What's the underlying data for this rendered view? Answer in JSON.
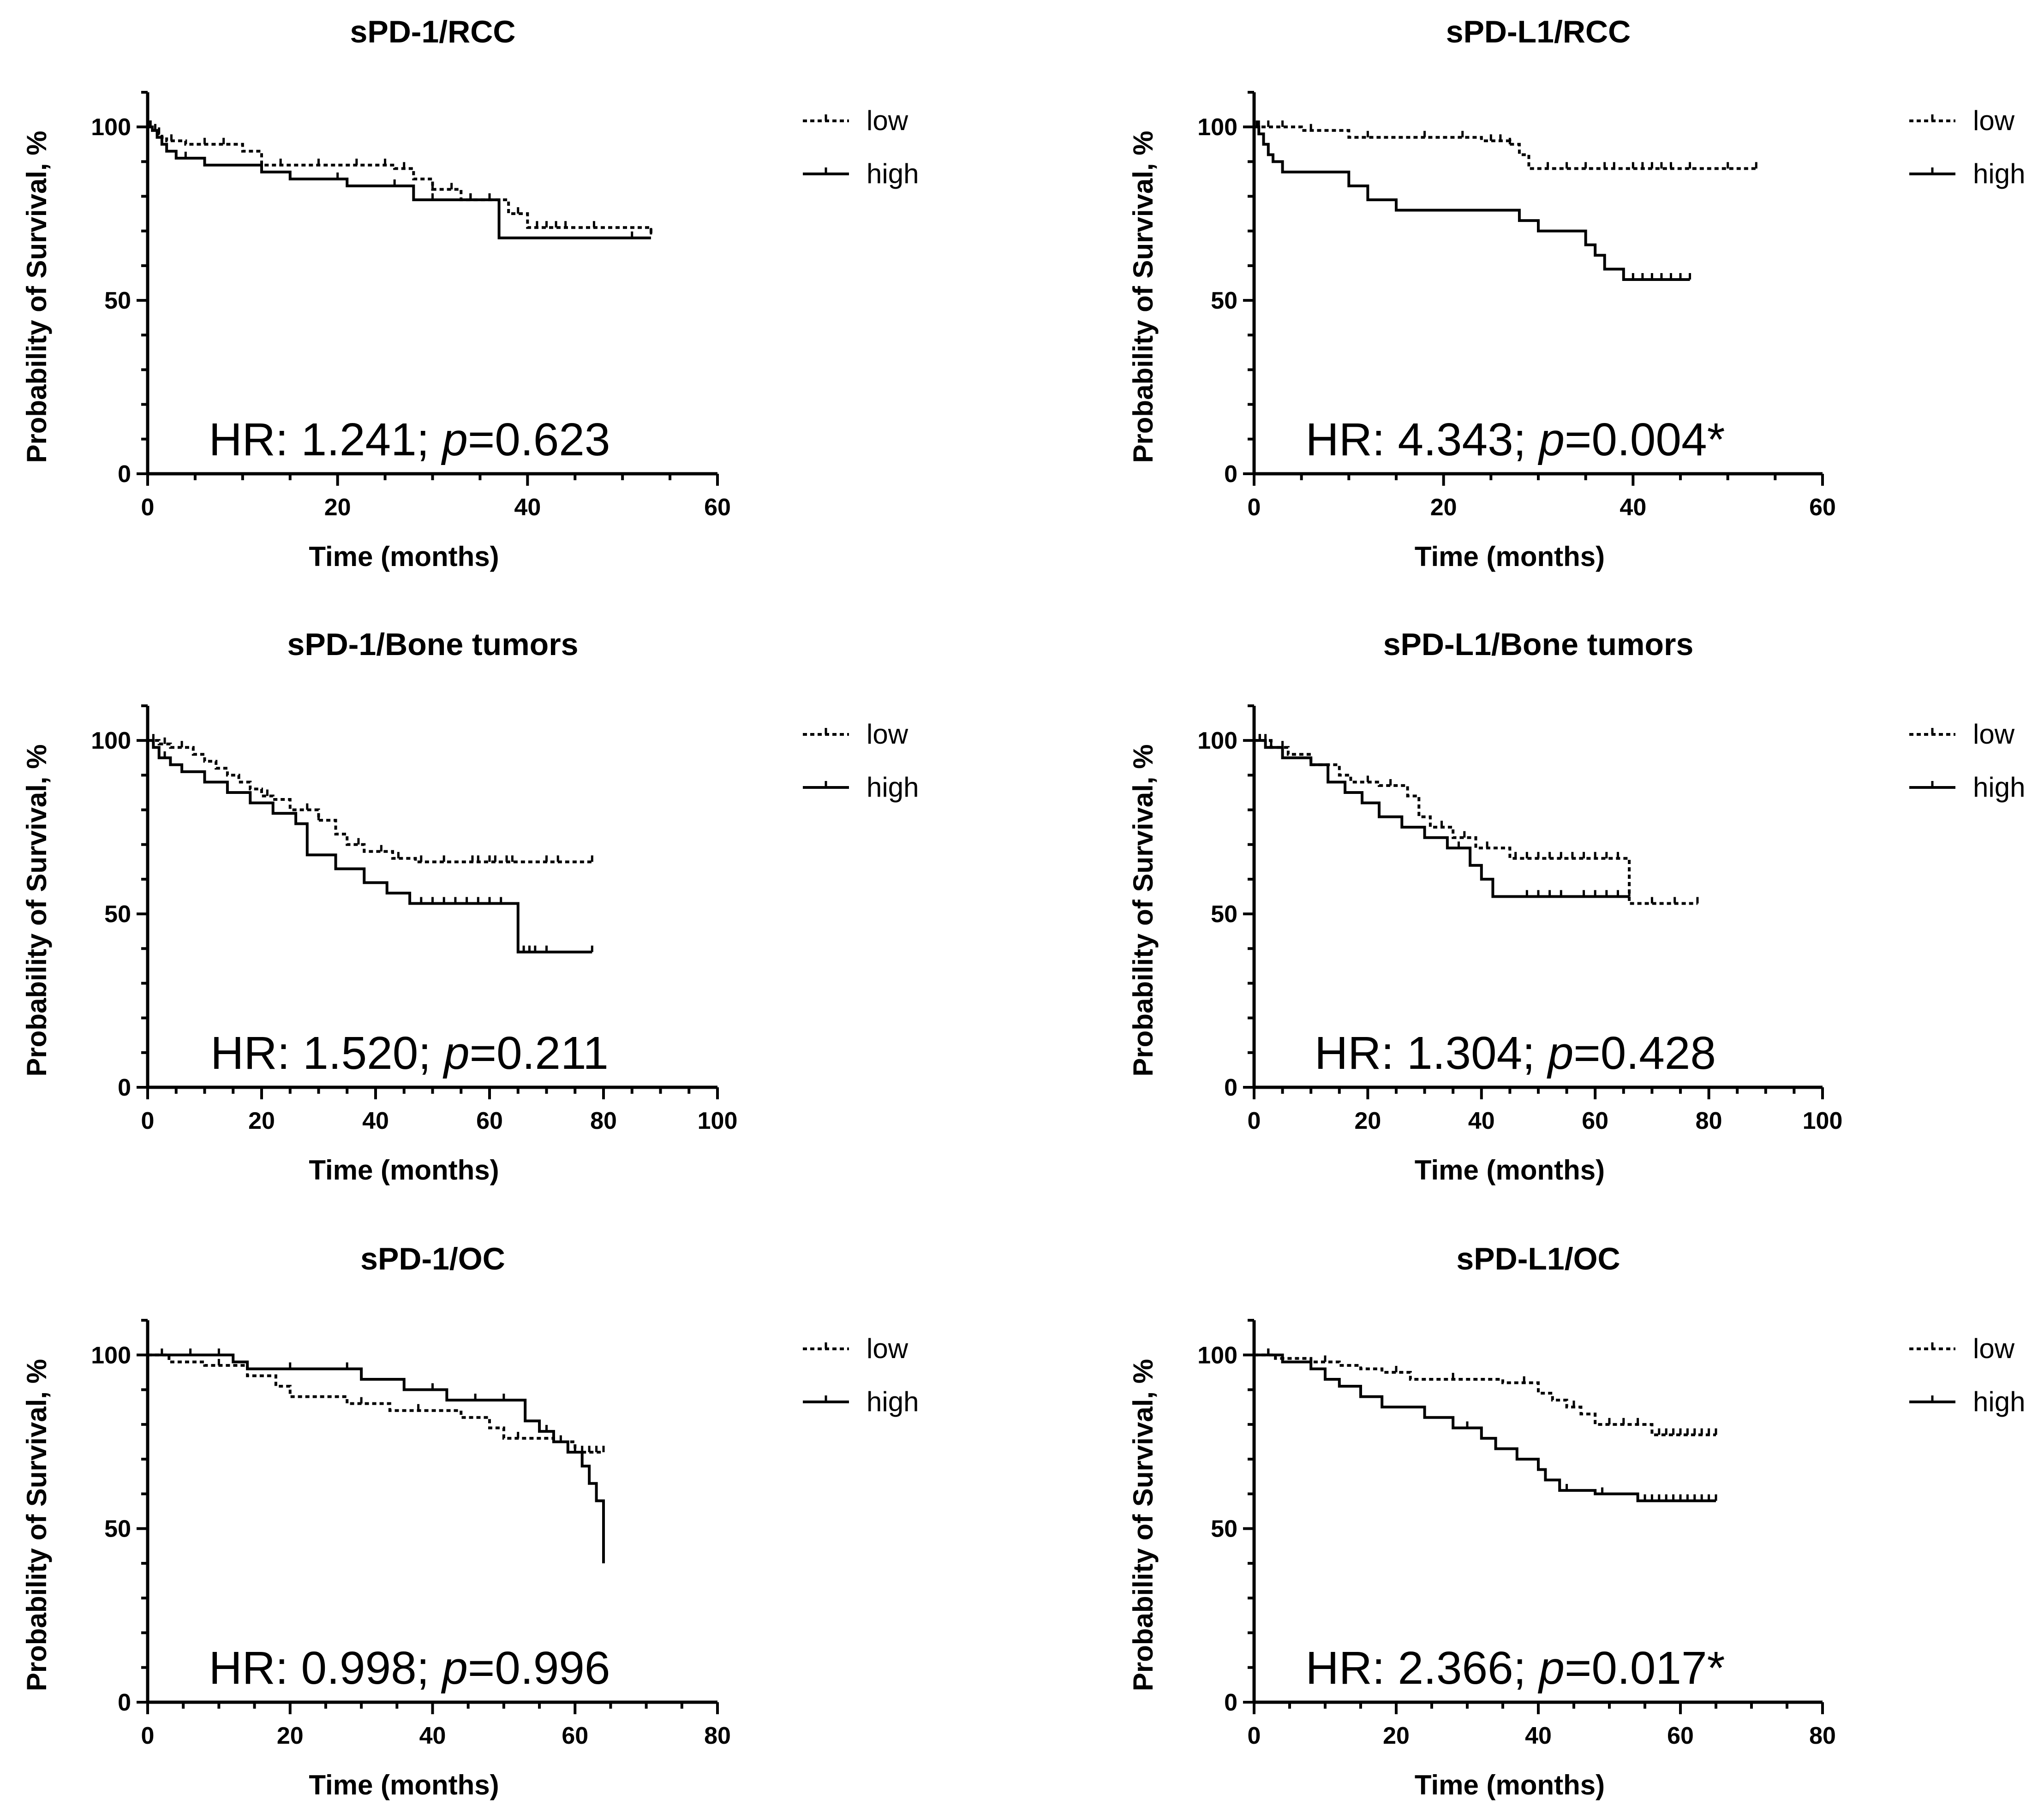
{
  "chart_data": [
    {
      "type": "line",
      "title": "sPD-1/RCC",
      "xlabel": "Time (months)",
      "ylabel": "Probability of Survival, %",
      "xlim": [
        0,
        60
      ],
      "ylim": [
        0,
        110
      ],
      "xticks": [
        0,
        20,
        40,
        60
      ],
      "yticks": [
        0,
        50,
        100
      ],
      "xtick_labels": [
        "0",
        "20",
        "40",
        "60"
      ],
      "ytick_labels": [
        "0",
        "50",
        "100"
      ],
      "legend": [
        "low",
        "high"
      ],
      "legend_position": "right",
      "annotation": {
        "prefix": "HR: 1.241; ",
        "p_symbol": "p",
        "p_value": "=0.623"
      },
      "series": [
        {
          "name": "low",
          "style": "dotted",
          "x": [
            0,
            0.5,
            1,
            1.5,
            2,
            4,
            10,
            12,
            26,
            28,
            30,
            33,
            38,
            40,
            53
          ],
          "y": [
            100,
            99,
            98,
            97,
            96,
            95,
            93,
            89,
            88,
            85,
            82,
            79,
            75,
            71,
            69
          ],
          "censor": [
            0.3,
            0.8,
            1.2,
            2.5,
            6,
            8,
            14,
            18,
            22,
            25,
            27,
            30,
            32,
            34,
            36,
            39,
            41,
            42,
            43,
            44,
            47,
            53
          ]
        },
        {
          "name": "high",
          "style": "solid",
          "x": [
            0,
            0.5,
            1,
            1.5,
            2,
            3,
            6,
            12,
            15,
            21,
            28,
            37,
            53
          ],
          "y": [
            100,
            99,
            97,
            95,
            93,
            91,
            89,
            87,
            85,
            83,
            79,
            68,
            68
          ],
          "censor": [
            0.3,
            1,
            2,
            4,
            20,
            26,
            30,
            34,
            51
          ]
        }
      ]
    },
    {
      "type": "line",
      "title": "sPD-L1/RCC",
      "xlabel": "Time (months)",
      "ylabel": "Probability of Survival, %",
      "xlim": [
        0,
        60
      ],
      "ylim": [
        0,
        110
      ],
      "xticks": [
        0,
        20,
        40,
        60
      ],
      "yticks": [
        0,
        50,
        100
      ],
      "xtick_labels": [
        "0",
        "20",
        "40",
        "60"
      ],
      "ytick_labels": [
        "0",
        "50",
        "100"
      ],
      "legend": [
        "low",
        "high"
      ],
      "legend_position": "right",
      "annotation": {
        "prefix": "HR: 4.343; ",
        "p_symbol": "p",
        "p_value": "=0.004*"
      },
      "series": [
        {
          "name": "low",
          "style": "dotted",
          "x": [
            0,
            1,
            2,
            5,
            10,
            20,
            24,
            27,
            28,
            29,
            53
          ],
          "y": [
            100,
            100,
            100,
            99,
            97,
            97,
            96,
            95,
            92,
            88,
            88
          ],
          "censor": [
            0.5,
            1.5,
            3,
            6,
            12,
            18,
            22,
            25,
            26,
            27,
            31,
            33,
            35,
            37,
            38,
            40,
            41,
            42,
            43,
            44,
            46,
            50,
            53
          ]
        },
        {
          "name": "high",
          "style": "solid",
          "x": [
            0,
            0.5,
            1,
            1.5,
            2,
            3,
            10,
            12,
            15,
            27,
            28,
            30,
            35,
            36,
            37,
            38,
            39,
            46
          ],
          "y": [
            100,
            98,
            95,
            92,
            90,
            87,
            83,
            79,
            76,
            76,
            73,
            70,
            66,
            63,
            59,
            59,
            56,
            56
          ],
          "censor": [
            0.3,
            1,
            28,
            39,
            40,
            41,
            42,
            43,
            44,
            45,
            46
          ]
        }
      ]
    },
    {
      "type": "line",
      "title": "sPD-1/Bone tumors",
      "xlabel": "Time (months)",
      "ylabel": "Probability of Survival, %",
      "xlim": [
        0,
        100
      ],
      "ylim": [
        0,
        110
      ],
      "xticks": [
        0,
        20,
        40,
        60,
        80,
        100
      ],
      "yticks": [
        0,
        50,
        100
      ],
      "xtick_labels": [
        "0",
        "20",
        "40",
        "60",
        "80",
        "100"
      ],
      "ytick_labels": [
        "0",
        "50",
        "100"
      ],
      "legend": [
        "low",
        "high"
      ],
      "legend_position": "right",
      "annotation": {
        "prefix": "HR: 1.520; ",
        "p_symbol": "p",
        "p_value": "=0.211"
      },
      "series": [
        {
          "name": "low",
          "style": "dotted",
          "x": [
            0,
            2,
            4,
            8,
            10,
            12,
            14,
            16,
            18,
            20,
            22,
            25,
            30,
            33,
            35,
            38,
            43,
            47,
            78
          ],
          "y": [
            100,
            99,
            98,
            96,
            94,
            92,
            90,
            88,
            86,
            84,
            83,
            80,
            77,
            73,
            70,
            68,
            66,
            65,
            65
          ],
          "censor": [
            1,
            3,
            6,
            21,
            28,
            30,
            37,
            41,
            44,
            48,
            52,
            57,
            58,
            60,
            61,
            63,
            64,
            70,
            72,
            78
          ]
        },
        {
          "name": "high",
          "style": "solid",
          "x": [
            0,
            1,
            2,
            4,
            6,
            10,
            14,
            18,
            22,
            26,
            28,
            33,
            38,
            42,
            46,
            65,
            78
          ],
          "y": [
            100,
            98,
            95,
            93,
            91,
            88,
            85,
            82,
            79,
            76,
            67,
            63,
            59,
            56,
            53,
            39,
            39
          ],
          "censor": [
            1,
            3,
            26,
            48,
            50,
            52,
            54,
            56,
            58,
            60,
            62,
            66,
            67,
            68,
            70,
            78
          ]
        }
      ]
    },
    {
      "type": "line",
      "title": "sPD-L1/Bone tumors",
      "xlabel": "Time (months)",
      "ylabel": "Probability of Survival, %",
      "xlim": [
        0,
        100
      ],
      "ylim": [
        0,
        110
      ],
      "xticks": [
        0,
        20,
        40,
        60,
        80,
        100
      ],
      "yticks": [
        0,
        50,
        100
      ],
      "xtick_labels": [
        "0",
        "20",
        "40",
        "60",
        "80",
        "100"
      ],
      "ytick_labels": [
        "0",
        "50",
        "100"
      ],
      "legend": [
        "low",
        "high"
      ],
      "legend_position": "right",
      "annotation": {
        "prefix": "HR: 1.304; ",
        "p_symbol": "p",
        "p_value": "=0.428"
      },
      "series": [
        {
          "name": "low",
          "style": "dotted",
          "x": [
            0,
            3,
            6,
            10,
            15,
            17,
            22,
            27,
            29,
            31,
            35,
            39,
            45,
            65,
            66,
            78
          ],
          "y": [
            100,
            98,
            96,
            93,
            90,
            88,
            87,
            84,
            78,
            75,
            72,
            69,
            66,
            66,
            53,
            53
          ],
          "censor": [
            1,
            2,
            5,
            20,
            24,
            33,
            37,
            41,
            46,
            48,
            50,
            52,
            54,
            56,
            58,
            60,
            62,
            64,
            70,
            74,
            78
          ]
        },
        {
          "name": "high",
          "style": "solid",
          "x": [
            0,
            2,
            5,
            10,
            13,
            16,
            19,
            22,
            26,
            30,
            34,
            38,
            40,
            42,
            66
          ],
          "y": [
            100,
            98,
            95,
            93,
            88,
            85,
            82,
            78,
            75,
            72,
            69,
            64,
            60,
            55,
            55
          ],
          "censor": [
            1,
            3,
            36,
            40,
            48,
            50,
            52,
            54,
            58,
            60,
            62,
            64,
            66
          ]
        }
      ]
    },
    {
      "type": "line",
      "title": "sPD-1/OC",
      "xlabel": "Time (months)",
      "ylabel": "Probability of Survival, %",
      "xlim": [
        0,
        80
      ],
      "ylim": [
        0,
        110
      ],
      "xticks": [
        0,
        20,
        40,
        60,
        80
      ],
      "yticks": [
        0,
        50,
        100
      ],
      "xtick_labels": [
        "0",
        "20",
        "40",
        "60",
        "80"
      ],
      "ytick_labels": [
        "0",
        "50",
        "100"
      ],
      "legend": [
        "low",
        "high"
      ],
      "legend_position": "right",
      "annotation": {
        "prefix": "HR: 0.998; ",
        "p_symbol": "p",
        "p_value": "=0.996"
      },
      "series": [
        {
          "name": "low",
          "style": "dotted",
          "x": [
            0,
            3,
            8,
            14,
            18,
            20,
            28,
            34,
            44,
            48,
            50,
            57,
            60,
            64
          ],
          "y": [
            100,
            98,
            97,
            94,
            91,
            88,
            86,
            84,
            82,
            79,
            76,
            75,
            72,
            72
          ],
          "censor": [
            2,
            10,
            30,
            38,
            52,
            58,
            61,
            62,
            63,
            64
          ]
        },
        {
          "name": "high",
          "style": "solid",
          "x": [
            0,
            12,
            14,
            30,
            36,
            42,
            53,
            55,
            57,
            59,
            61,
            62,
            63,
            64
          ],
          "y": [
            100,
            98,
            96,
            93,
            90,
            87,
            81,
            78,
            75,
            72,
            68,
            63,
            58,
            40
          ],
          "censor": [
            6,
            10,
            20,
            28,
            40,
            46,
            50,
            56,
            60
          ]
        }
      ]
    },
    {
      "type": "line",
      "title": "sPD-L1/OC",
      "xlabel": "Time (months)",
      "ylabel": "Probability of Survival, %",
      "xlim": [
        0,
        80
      ],
      "ylim": [
        0,
        110
      ],
      "xticks": [
        0,
        20,
        40,
        60,
        80
      ],
      "yticks": [
        0,
        50,
        100
      ],
      "xtick_labels": [
        "0",
        "20",
        "40",
        "60",
        "80"
      ],
      "ytick_labels": [
        "0",
        "50",
        "100"
      ],
      "legend": [
        "low",
        "high"
      ],
      "legend_position": "right",
      "annotation": {
        "prefix": "HR: 2.366; ",
        "p_symbol": "p",
        "p_value": "=0.017*"
      },
      "series": [
        {
          "name": "low",
          "style": "dotted",
          "x": [
            0,
            3,
            8,
            12,
            15,
            18,
            22,
            35,
            40,
            42,
            44,
            46,
            48,
            56,
            65
          ],
          "y": [
            100,
            99,
            98,
            97,
            96,
            95,
            93,
            92,
            89,
            87,
            85,
            83,
            80,
            77,
            77
          ],
          "censor": [
            2,
            10,
            20,
            28,
            38,
            45,
            50,
            52,
            54,
            57,
            58,
            59,
            60,
            61,
            62,
            63,
            64,
            65
          ]
        },
        {
          "name": "high",
          "style": "solid",
          "x": [
            0,
            4,
            8,
            10,
            12,
            15,
            18,
            24,
            28,
            32,
            34,
            37,
            40,
            41,
            43,
            48,
            54,
            65
          ],
          "y": [
            100,
            98,
            96,
            93,
            91,
            88,
            85,
            82,
            79,
            76,
            73,
            70,
            67,
            64,
            61,
            60,
            58,
            58
          ],
          "censor": [
            2,
            30,
            44,
            49,
            55,
            56,
            57,
            58,
            59,
            60,
            61,
            62,
            63,
            64,
            65
          ]
        }
      ]
    }
  ]
}
